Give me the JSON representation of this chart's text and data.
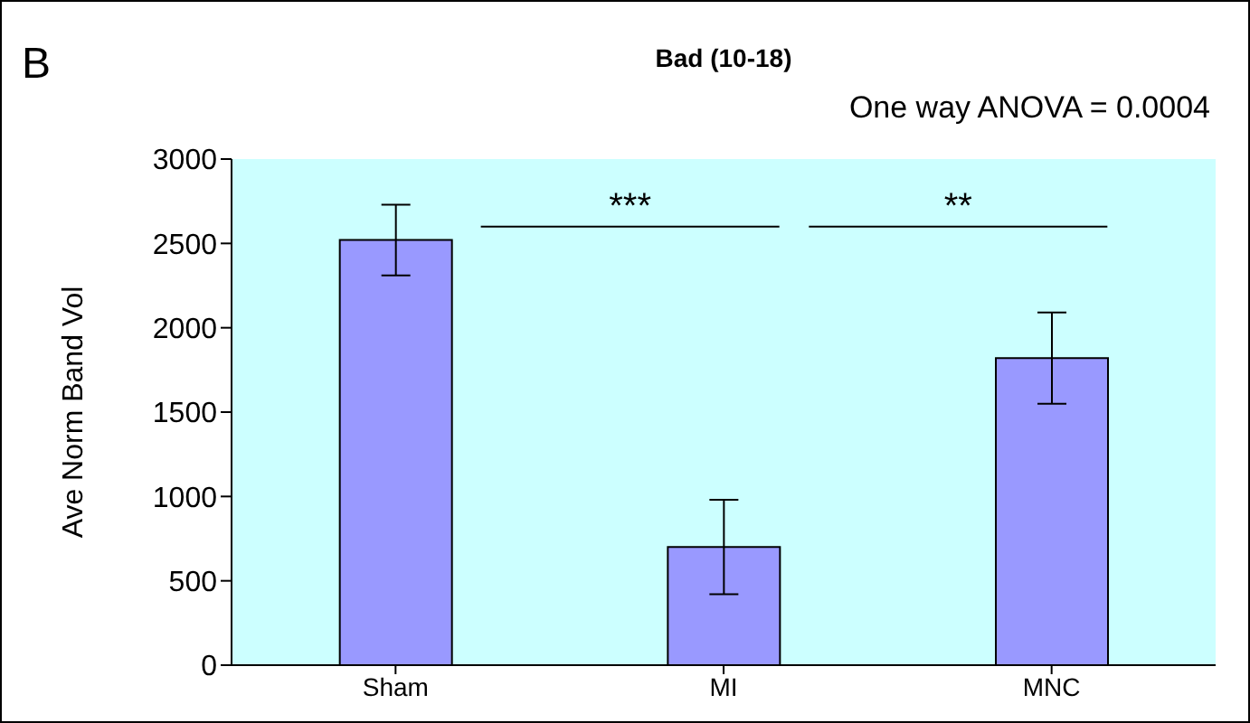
{
  "chart_data": {
    "type": "bar",
    "title": "Bad (10-18)",
    "ylabel": "Ave Norm Band Vol",
    "categories": [
      "Sham",
      "MI",
      "MNC"
    ],
    "values": [
      2520,
      700,
      1820
    ],
    "errors": [
      210,
      280,
      270
    ],
    "color": "#9999ff",
    "ylim": [
      0,
      3000
    ],
    "yticks": [
      0,
      500,
      1000,
      1500,
      2000,
      2500,
      3000
    ],
    "annotations": [
      "B",
      "One way ANOVA = 0.0004",
      "***",
      "**"
    ]
  }
}
